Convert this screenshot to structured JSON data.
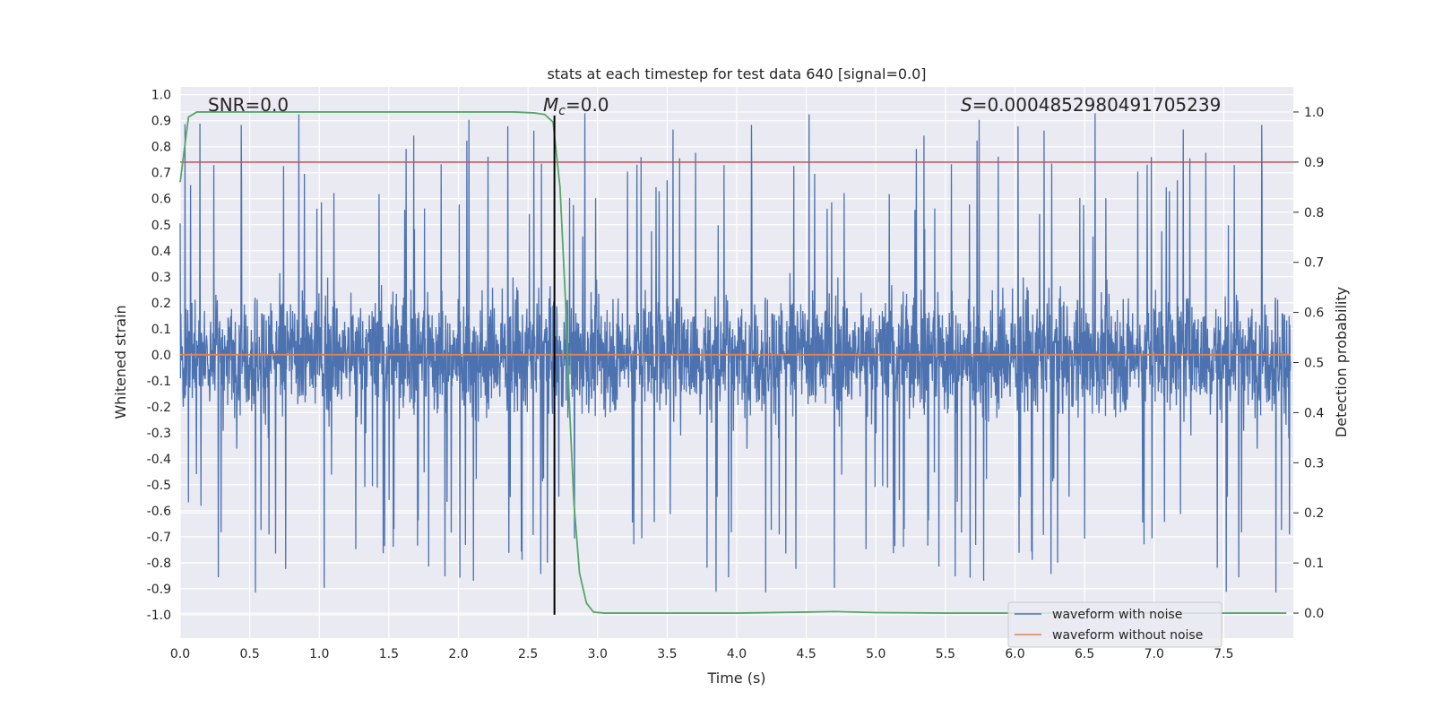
{
  "chart_data": {
    "type": "line",
    "title": "stats at each timestep for test data 640 [signal=0.0]",
    "xlabel": "Time (s)",
    "ylabel": "Whitened strain",
    "y2label": "Detection probability",
    "xlim": [
      0.0,
      8.0
    ],
    "ylim": [
      -1.09,
      1.03
    ],
    "y2lim": [
      -0.05,
      1.05
    ],
    "xticks": [
      "0.0",
      "0.5",
      "1.0",
      "1.5",
      "2.0",
      "2.5",
      "3.0",
      "3.5",
      "4.0",
      "4.5",
      "5.0",
      "5.5",
      "6.0",
      "6.5",
      "7.0",
      "7.5"
    ],
    "yticks": [
      "1.0",
      "0.9",
      "0.8",
      "0.7",
      "0.6",
      "0.5",
      "0.4",
      "0.3",
      "0.2",
      "0.1",
      "0.0",
      "-0.1",
      "-0.2",
      "-0.3",
      "-0.4",
      "-0.5",
      "-0.6",
      "-0.7",
      "-0.8",
      "-0.9",
      "-1.0"
    ],
    "y2ticks": [
      "1.0",
      "0.9",
      "0.8",
      "0.7",
      "0.6",
      "0.5",
      "0.4",
      "0.3",
      "0.2",
      "0.1",
      "0.0"
    ],
    "annotations": {
      "snr": "SNR=0.0",
      "mc_symbol": "M",
      "mc_sub": "c",
      "mc_value": "=0.0",
      "s_symbol": "S",
      "s_value": "=0.0004852980491705239"
    },
    "legend": {
      "position": "lower-right",
      "items": [
        "waveform with noise",
        "waveform without noise"
      ]
    },
    "series": [
      {
        "name": "waveform with noise",
        "axis": "left",
        "color": "#4c72b0",
        "noise": {
          "t_start": 0.0,
          "t_end": 7.98,
          "amplitude_typ": 0.35,
          "peak_max": 0.93,
          "trough_min": -1.0
        }
      },
      {
        "name": "waveform without noise",
        "axis": "left",
        "color": "#dd8452",
        "x": [
          0.0,
          7.98
        ],
        "y": [
          0.0,
          0.0
        ]
      },
      {
        "name": "detection probability",
        "axis": "right",
        "color": "#55a868",
        "x": [
          0.0,
          0.06,
          0.12,
          0.5,
          1.0,
          1.5,
          2.0,
          2.4,
          2.55,
          2.62,
          2.68,
          2.73,
          2.77,
          2.8,
          2.83,
          2.87,
          2.92,
          2.97,
          3.05,
          3.5,
          4.0,
          4.5,
          4.7,
          5.0,
          5.5,
          6.0,
          6.5,
          7.0,
          7.5,
          7.95
        ],
        "y": [
          0.86,
          0.99,
          1.0,
          1.0,
          1.0,
          1.0,
          1.0,
          1.0,
          0.998,
          0.995,
          0.98,
          0.85,
          0.62,
          0.4,
          0.22,
          0.08,
          0.02,
          0.002,
          0.0,
          0.0,
          0.0,
          0.002,
          0.003,
          0.001,
          0.0,
          0.0,
          0.0,
          0.0,
          0.0,
          0.0
        ]
      },
      {
        "name": "threshold",
        "axis": "right",
        "color": "#c44e52",
        "x": [
          0.0,
          8.0
        ],
        "y": [
          0.9,
          0.9
        ]
      }
    ],
    "marker_line": {
      "x": 2.69,
      "y_from": -1.0,
      "y_to": 0.92,
      "color": "#000000"
    }
  }
}
